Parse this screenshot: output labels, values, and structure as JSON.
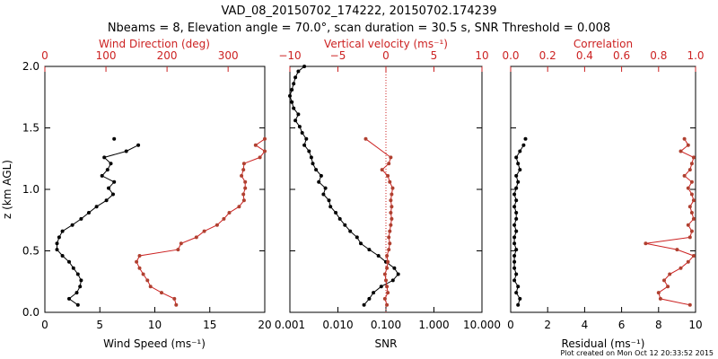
{
  "header": {
    "title_line1": "VAD_08_20150702_174222, 20150702.174239",
    "title_line2": "Nbeams = 8, Elevation angle = 70.0°, scan duration = 30.5 s, SNR Threshold = 0.008"
  },
  "footnote": "Plot created on Mon Oct 12 20:33:52 2015",
  "colors": {
    "primary": "#000000",
    "secondary": "#cc2222",
    "secondary_marker": "#b04030"
  },
  "chart_data": [
    {
      "type": "line",
      "panel": "wind",
      "ylabel": "z (km AGL)",
      "ylim": [
        0,
        2.0
      ],
      "yticks": [
        "0.0",
        "0.5",
        "1.0",
        "1.5",
        "2.0"
      ],
      "xlabel": "Wind Speed (ms⁻¹)",
      "xlim": [
        0,
        20
      ],
      "xticks": [
        "0",
        "5",
        "10",
        "15",
        "20"
      ],
      "x2label": "Wind Direction (deg)",
      "x2lim": [
        0,
        360
      ],
      "x2ticks": [
        "0",
        "100",
        "200",
        "300"
      ],
      "x2tick_values": [
        0,
        100,
        200,
        300
      ],
      "series": [
        {
          "name": "Wind Speed",
          "axis": "bottom",
          "z": [
            0.06,
            0.11,
            0.16,
            0.21,
            0.26,
            0.31,
            0.36,
            0.41,
            0.46,
            0.51,
            0.56,
            0.61,
            0.66,
            0.71,
            0.76,
            0.81,
            0.86,
            0.91,
            0.96,
            1.01,
            1.06,
            1.11,
            1.16,
            1.21,
            1.26,
            1.31,
            1.36,
            1.41
          ],
          "values": [
            3.0,
            2.2,
            2.9,
            3.2,
            3.3,
            3.0,
            2.6,
            2.2,
            1.6,
            1.1,
            1.1,
            1.3,
            1.6,
            2.5,
            3.3,
            4.0,
            4.7,
            5.6,
            6.2,
            5.8,
            6.3,
            5.2,
            5.7,
            6.0,
            5.4,
            7.4,
            8.5,
            6.3
          ]
        },
        {
          "name": "Wind Direction",
          "axis": "top",
          "z": [
            0.06,
            0.11,
            0.16,
            0.21,
            0.26,
            0.31,
            0.36,
            0.41,
            0.46,
            0.51,
            0.56,
            0.61,
            0.66,
            0.71,
            0.76,
            0.81,
            0.86,
            0.91,
            0.96,
            1.01,
            1.06,
            1.11,
            1.16,
            1.21,
            1.26,
            1.31,
            1.36,
            1.41
          ],
          "values": [
            215,
            212,
            191,
            173,
            168,
            161,
            155,
            150,
            155,
            218,
            223,
            248,
            261,
            282,
            293,
            302,
            318,
            326,
            325,
            328,
            328,
            322,
            325,
            326,
            352,
            360,
            345,
            360
          ]
        }
      ]
    },
    {
      "type": "line",
      "panel": "snr",
      "xlabel": "SNR",
      "xscale": "log",
      "xlim": [
        0.001,
        10
      ],
      "xticks": [
        "0.001",
        "0.010",
        "0.100",
        "1.000",
        "10.000"
      ],
      "xtick_values": [
        0.001,
        0.01,
        0.1,
        1,
        10
      ],
      "x2label": "Vertical velocity (ms⁻¹)",
      "x2lim": [
        -10,
        10
      ],
      "x2ticks": [
        "−10",
        "−5",
        "0",
        "5",
        "10"
      ],
      "x2tick_values": [
        -10,
        -5,
        0,
        5,
        10
      ],
      "series": [
        {
          "name": "SNR",
          "axis": "bottom",
          "z": [
            0.06,
            0.11,
            0.16,
            0.21,
            0.26,
            0.31,
            0.36,
            0.41,
            0.46,
            0.51,
            0.56,
            0.61,
            0.66,
            0.71,
            0.76,
            0.81,
            0.86,
            0.91,
            0.96,
            1.01,
            1.06,
            1.11,
            1.16,
            1.21,
            1.26,
            1.31,
            1.36,
            1.41,
            1.46,
            1.51,
            1.56,
            1.61,
            1.66,
            1.71,
            1.76,
            1.81,
            1.86,
            1.91,
            1.96,
            2.0
          ],
          "values": [
            0.035,
            0.045,
            0.055,
            0.08,
            0.14,
            0.18,
            0.15,
            0.1,
            0.07,
            0.045,
            0.03,
            0.025,
            0.018,
            0.014,
            0.011,
            0.009,
            0.007,
            0.0065,
            0.005,
            0.0055,
            0.004,
            0.0045,
            0.0035,
            0.003,
            0.0028,
            0.0025,
            0.002,
            0.0022,
            0.0018,
            0.0016,
            0.0013,
            0.0015,
            0.0012,
            0.0011,
            0.001,
            0.0011,
            0.0012,
            0.0013,
            0.0015,
            0.002
          ]
        },
        {
          "name": "Vertical velocity",
          "axis": "top",
          "z": [
            0.06,
            0.11,
            0.16,
            0.21,
            0.26,
            0.31,
            0.36,
            0.41,
            0.46,
            0.51,
            0.56,
            0.61,
            0.66,
            0.71,
            0.76,
            0.81,
            0.86,
            0.91,
            0.96,
            1.01,
            1.06,
            1.11,
            1.16,
            1.21,
            1.26,
            1.41
          ],
          "values": [
            0.1,
            -0.1,
            0.2,
            0.1,
            0.0,
            -0.1,
            0.1,
            0.2,
            0.1,
            0.3,
            0.4,
            0.3,
            0.4,
            0.5,
            0.6,
            0.5,
            0.6,
            0.5,
            0.6,
            0.7,
            0.4,
            0.2,
            -0.4,
            0.3,
            0.5,
            -2.1
          ]
        }
      ]
    },
    {
      "type": "line",
      "panel": "residual",
      "xlabel": "Residual (ms⁻¹)",
      "xlim": [
        0,
        10
      ],
      "xticks": [
        "0",
        "2",
        "4",
        "6",
        "8",
        "10"
      ],
      "x2label": "Correlation",
      "x2lim": [
        0,
        1.0
      ],
      "x2ticks": [
        "0.0",
        "0.2",
        "0.4",
        "0.6",
        "0.8",
        "1.0"
      ],
      "x2tick_values": [
        0,
        0.2,
        0.4,
        0.6,
        0.8,
        1.0
      ],
      "series": [
        {
          "name": "Residual",
          "axis": "bottom",
          "z": [
            0.06,
            0.11,
            0.16,
            0.21,
            0.26,
            0.31,
            0.36,
            0.41,
            0.46,
            0.51,
            0.56,
            0.61,
            0.66,
            0.71,
            0.76,
            0.81,
            0.86,
            0.91,
            0.96,
            1.01,
            1.06,
            1.11,
            1.16,
            1.21,
            1.26,
            1.31,
            1.36,
            1.41
          ],
          "values": [
            0.4,
            0.5,
            0.3,
            0.4,
            0.2,
            0.3,
            0.2,
            0.2,
            0.2,
            0.3,
            0.2,
            0.2,
            0.3,
            0.2,
            0.3,
            0.3,
            0.2,
            0.3,
            0.2,
            0.3,
            0.4,
            0.3,
            0.5,
            0.4,
            0.3,
            0.5,
            0.7,
            0.8
          ]
        },
        {
          "name": "Correlation",
          "axis": "top",
          "z": [
            0.06,
            0.11,
            0.16,
            0.21,
            0.26,
            0.31,
            0.36,
            0.41,
            0.46,
            0.51,
            0.56,
            0.61,
            0.66,
            0.71,
            0.76,
            0.81,
            0.86,
            0.91,
            0.96,
            1.01,
            1.06,
            1.11,
            1.16,
            1.21,
            1.26,
            1.31,
            1.36,
            1.41
          ],
          "values": [
            0.97,
            0.81,
            0.8,
            0.85,
            0.83,
            0.86,
            0.92,
            0.96,
            0.99,
            0.9,
            0.73,
            0.97,
            0.98,
            0.96,
            0.99,
            0.98,
            0.97,
            0.99,
            0.98,
            0.96,
            0.98,
            0.94,
            0.97,
            0.98,
            0.99,
            0.92,
            0.96,
            0.94
          ]
        }
      ]
    }
  ]
}
